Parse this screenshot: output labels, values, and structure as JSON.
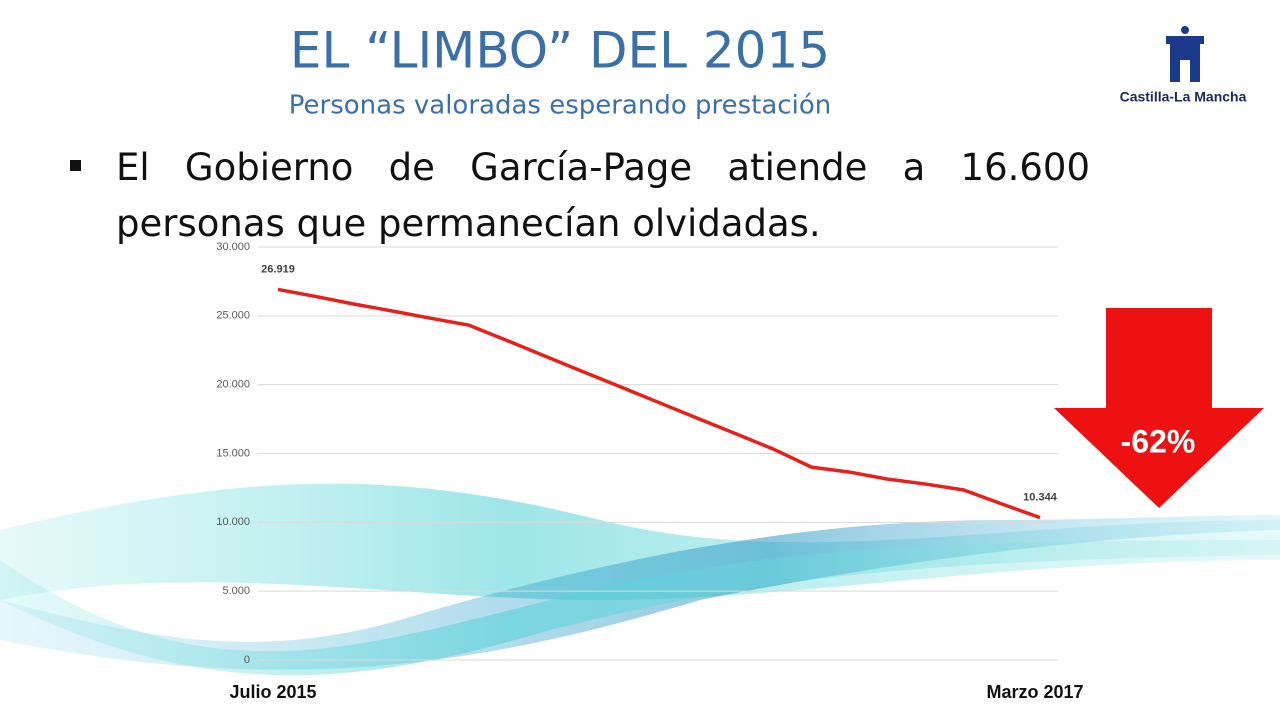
{
  "chart_data": {
    "type": "line",
    "title": "EL “LIMBO” DEL 2015",
    "subtitle": "Personas valoradas esperando prestación",
    "categories": [
      "Julio 2015",
      null,
      null,
      null,
      null,
      null,
      null,
      null,
      null,
      null,
      null,
      null,
      null,
      null,
      null,
      null,
      null,
      null,
      null,
      null,
      "Marzo 2017"
    ],
    "series": [
      {
        "name": null,
        "color": "#e8201c",
        "values": [
          26919,
          26400,
          25850,
          25350,
          24830,
          24330,
          23220,
          22080,
          20950,
          19830,
          18700,
          17570,
          16450,
          15320,
          14010,
          13650,
          13140,
          12780,
          12350,
          11330,
          10344
        ],
        "value_labels": [
          "26.919",
          null,
          null,
          null,
          null,
          null,
          null,
          null,
          null,
          null,
          null,
          null,
          null,
          null,
          null,
          null,
          null,
          null,
          null,
          null,
          "10.344"
        ]
      }
    ],
    "ylim": [
      0,
      30000
    ],
    "yticks": [
      0,
      {
        "value": 5000,
        "label": "5.000"
      },
      {
        "value": 10000,
        "label": "10.000"
      },
      {
        "value": 15000,
        "label": "15.000"
      },
      {
        "value": 20000,
        "label": "20.000"
      },
      {
        "value": 25000,
        "label": "25.000"
      },
      {
        "value": 30000,
        "label": "30.000"
      }
    ],
    "grid": true,
    "annotation": "-62%"
  },
  "bullet": "El Gobierno de García-Page atiende a 16.600 personas que permanecían olvidadas.",
  "logo": "Castilla-La Mancha"
}
